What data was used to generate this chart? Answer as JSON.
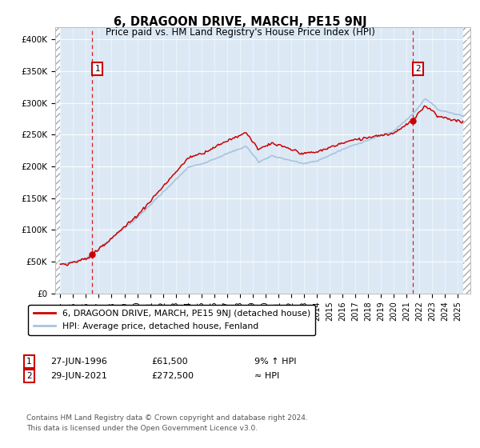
{
  "title": "6, DRAGOON DRIVE, MARCH, PE15 9NJ",
  "subtitle": "Price paid vs. HM Land Registry's House Price Index (HPI)",
  "sale1_year": 1996.49,
  "sale1_price": 61500,
  "sale2_year": 2021.49,
  "sale2_price": 272500,
  "legend1": "6, DRAGOON DRIVE, MARCH, PE15 9NJ (detached house)",
  "legend2": "HPI: Average price, detached house, Fenland",
  "footnote1": "Contains HM Land Registry data © Crown copyright and database right 2024.",
  "footnote2": "This data is licensed under the Open Government Licence v3.0.",
  "sale1_date_str": "27-JUN-1996",
  "sale1_price_str": "£61,500",
  "sale1_rel": "9% ↑ HPI",
  "sale2_date_str": "29-JUN-2021",
  "sale2_price_str": "£272,500",
  "sale2_rel": "≈ HPI",
  "hpi_color": "#a8c4de",
  "price_color": "#cc0000",
  "bg_color": "#dce9f5",
  "ylim": [
    0,
    420000
  ],
  "xlim_start": 1993.6,
  "xlim_end": 2026.0,
  "hatch_right_start": 2025.42
}
